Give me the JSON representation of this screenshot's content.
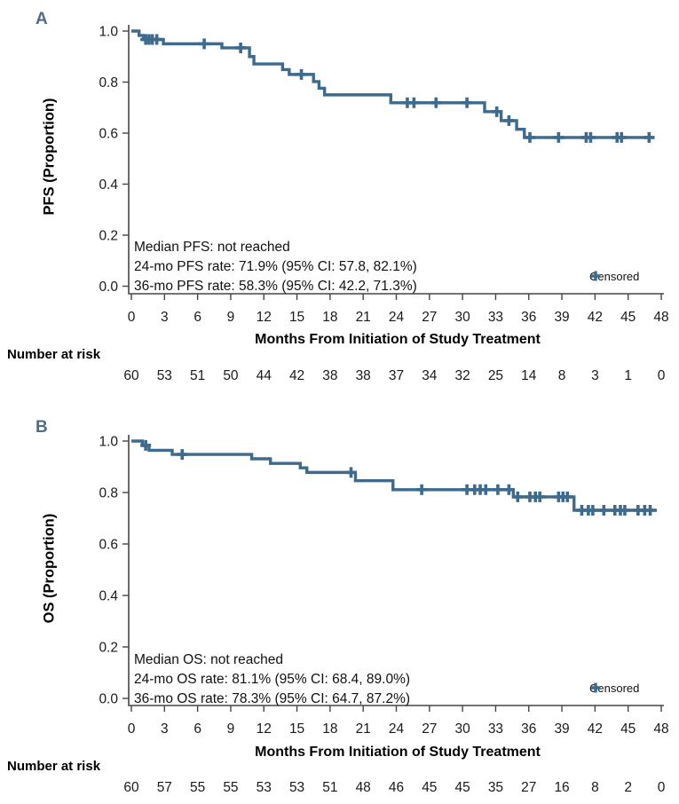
{
  "figure": {
    "xlabel": "Months From Initiation of Study Treatment",
    "number_at_risk_label": "Number at risk",
    "legend_label": "Censored"
  },
  "chart_data": {
    "type": "line",
    "subtype": "kaplan_meier_step",
    "title": "",
    "xlabel": "Months From Initiation of Study Treatment",
    "xlim": [
      0,
      48
    ],
    "ylim": [
      0.0,
      1.0
    ],
    "grid": false,
    "legend_position": "bottom-right-inside",
    "x_ticks": [
      0,
      3,
      6,
      9,
      12,
      15,
      18,
      21,
      24,
      27,
      30,
      33,
      36,
      39,
      42,
      45,
      48
    ],
    "y_ticks": [
      "1.0",
      "0.8",
      "0.6",
      "0.4",
      "0.2",
      "0.0"
    ],
    "colors": {
      "curve": "#3d6a8d",
      "panel_label": "#4d6d8c",
      "text": "#1a1a1a"
    },
    "panels": [
      {
        "label": "A",
        "ylabel": "PFS (Proportion)",
        "annotation_lines": [
          "Median PFS: not reached",
          "24-mo PFS rate: 71.9% (95% CI: 57.8, 82.1%)",
          "36-mo PFS rate: 58.3% (95% CI: 42.2, 71.3%)"
        ],
        "legend_label": "Censored",
        "number_at_risk": [
          60,
          53,
          51,
          50,
          44,
          42,
          38,
          38,
          37,
          34,
          32,
          25,
          14,
          8,
          3,
          1,
          0
        ],
        "steps": [
          [
            0,
            1.0
          ],
          [
            0.7,
            0.983
          ],
          [
            1.1,
            0.967
          ],
          [
            2.9,
            0.95
          ],
          [
            8.2,
            0.934
          ],
          [
            10.7,
            0.9
          ],
          [
            11.1,
            0.871
          ],
          [
            13.7,
            0.849
          ],
          [
            14.3,
            0.83
          ],
          [
            16.5,
            0.802
          ],
          [
            17.0,
            0.776
          ],
          [
            17.5,
            0.75
          ],
          [
            23.5,
            0.719
          ],
          [
            32.0,
            0.684
          ],
          [
            33.5,
            0.649
          ],
          [
            34.9,
            0.615
          ],
          [
            35.6,
            0.583
          ]
        ],
        "censor_times": [
          1.3,
          1.6,
          1.9,
          2.3,
          6.6,
          9.9,
          15.4,
          25.0,
          25.6,
          27.6,
          30.4,
          33.1,
          34.2,
          36.1,
          38.7,
          41.2,
          41.6,
          44.0,
          44.4,
          46.9
        ],
        "end_time": 47.4
      },
      {
        "label": "B",
        "ylabel": "OS (Proportion)",
        "annotation_lines": [
          "Median OS: not reached",
          "24-mo OS rate: 81.1% (95% CI: 68.4, 89.0%)",
          "36-mo OS rate: 78.3% (95% CI: 64.7, 87.2%)"
        ],
        "legend_label": "Censored",
        "number_at_risk": [
          60,
          57,
          55,
          55,
          53,
          53,
          51,
          48,
          46,
          45,
          45,
          35,
          27,
          16,
          8,
          2,
          0
        ],
        "steps": [
          [
            0,
            1.0
          ],
          [
            1.0,
            0.983
          ],
          [
            1.6,
            0.964
          ],
          [
            3.7,
            0.948
          ],
          [
            10.9,
            0.931
          ],
          [
            12.6,
            0.913
          ],
          [
            15.3,
            0.896
          ],
          [
            15.9,
            0.878
          ],
          [
            20.3,
            0.846
          ],
          [
            23.7,
            0.811
          ],
          [
            34.6,
            0.783
          ],
          [
            40.1,
            0.731
          ]
        ],
        "censor_times": [
          1.3,
          4.6,
          19.9,
          26.3,
          30.4,
          31.1,
          31.6,
          32.1,
          33.2,
          34.2,
          35.0,
          36.1,
          36.6,
          37.0,
          38.7,
          39.1,
          39.5,
          40.8,
          41.4,
          41.8,
          42.8,
          43.8,
          44.3,
          44.7,
          45.9,
          46.5,
          47.0
        ],
        "end_time": 47.6
      }
    ]
  }
}
